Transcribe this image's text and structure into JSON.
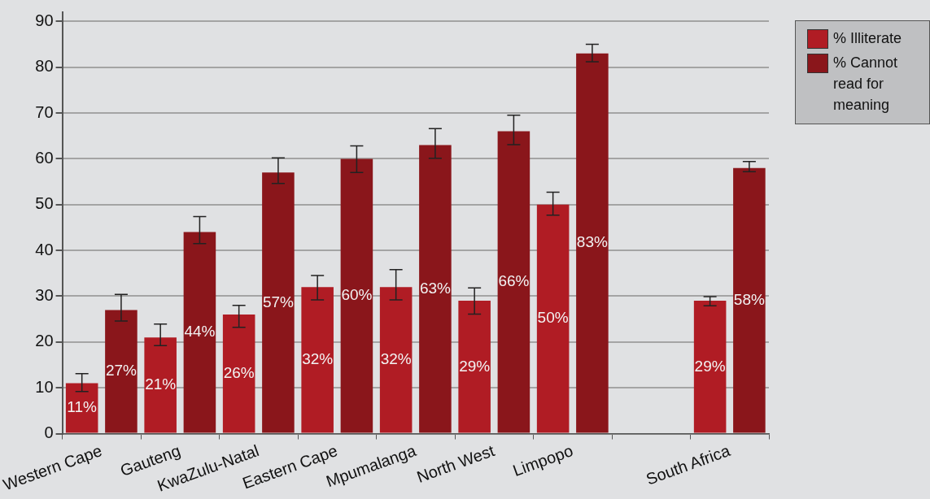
{
  "chart_data": {
    "type": "bar",
    "categories": [
      "Western Cape",
      "Gauteng",
      "KwaZulu-Natal",
      "Eastern Cape",
      "Mpumalanga",
      "North West",
      "Limpopo",
      null,
      "South Africa"
    ],
    "series": [
      {
        "name": "% Illiterate",
        "color": "#b01c24",
        "values": [
          11,
          21,
          26,
          32,
          32,
          29,
          50,
          null,
          29
        ],
        "value_labels": [
          "11%",
          "21%",
          "26%",
          "32%",
          "32%",
          "29%",
          "50%",
          null,
          "29%"
        ],
        "errors": [
          [
            9.2,
            13.1
          ],
          [
            19.2,
            23.9
          ],
          [
            23.2,
            28.0
          ],
          [
            29.2,
            34.5
          ],
          [
            29.2,
            35.8
          ],
          [
            26.1,
            31.8
          ],
          [
            47.7,
            52.7
          ],
          null,
          [
            27.9,
            29.9
          ]
        ]
      },
      {
        "name": "% Cannot read for meaning",
        "color": "#8a161b",
        "values": [
          27,
          44,
          57,
          60,
          63,
          66,
          83,
          null,
          58
        ],
        "value_labels": [
          "27%",
          "44%",
          "57%",
          "60%",
          "63%",
          "66%",
          "83%",
          null,
          "58%"
        ],
        "errors": [
          [
            24.6,
            30.4
          ],
          [
            41.5,
            47.4
          ],
          [
            54.6,
            60.2
          ],
          [
            57.0,
            62.8
          ],
          [
            60.1,
            66.6
          ],
          [
            63.1,
            69.5
          ],
          [
            81.2,
            85.0
          ],
          null,
          [
            57.2,
            59.4
          ]
        ]
      }
    ],
    "ylim": [
      0,
      92
    ],
    "yticks": [
      0,
      10,
      20,
      30,
      40,
      50,
      60,
      70,
      80,
      90
    ],
    "grid": "y",
    "legend": "top right"
  }
}
